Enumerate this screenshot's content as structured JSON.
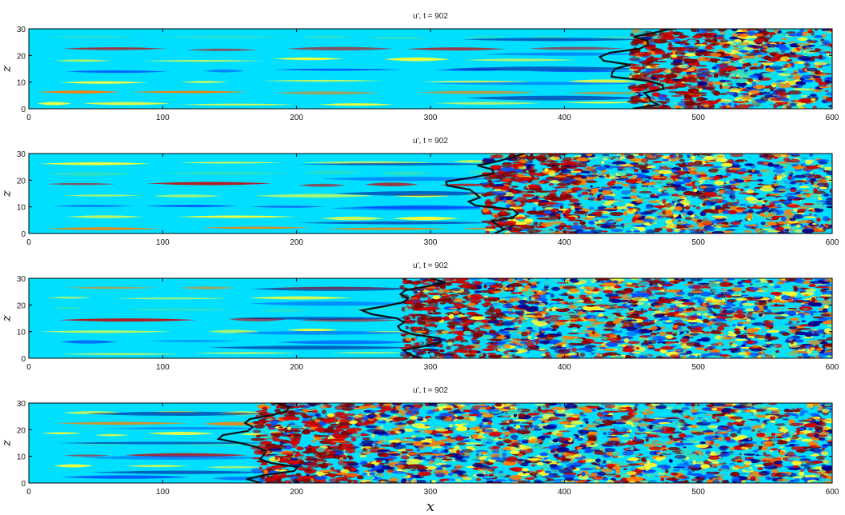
{
  "figure_xlabel": "x",
  "chart_data": [
    {
      "type": "heatmap",
      "title": "u', t = 902",
      "xlabel": "",
      "ylabel": "z",
      "xlim": [
        0,
        600
      ],
      "ylim": [
        0,
        30
      ],
      "xticks": [
        "0",
        "100",
        "200",
        "300",
        "400",
        "500",
        "600"
      ],
      "yticks": [
        "0",
        "10",
        "20",
        "30"
      ],
      "colormap": [
        "#00008f",
        "#0050ff",
        "#00dfff",
        "#30e0c0",
        "#ffff30",
        "#ff8000",
        "#d00000",
        "#800000"
      ],
      "turbulent_region_start_x": 450,
      "contour_color": "#111111"
    },
    {
      "type": "heatmap",
      "title": "u', t = 902",
      "xlabel": "",
      "ylabel": "z",
      "xlim": [
        0,
        600
      ],
      "ylim": [
        0,
        30
      ],
      "xticks": [
        "0",
        "100",
        "200",
        "300",
        "400",
        "500",
        "600"
      ],
      "yticks": [
        "0",
        "10",
        "20",
        "30"
      ],
      "colormap": [
        "#00008f",
        "#0050ff",
        "#00dfff",
        "#30e0c0",
        "#ffff30",
        "#ff8000",
        "#d00000",
        "#800000"
      ],
      "turbulent_region_start_x": 340,
      "contour_color": "#111111"
    },
    {
      "type": "heatmap",
      "title": "u', t = 902",
      "xlabel": "",
      "ylabel": "z",
      "xlim": [
        0,
        600
      ],
      "ylim": [
        0,
        30
      ],
      "xticks": [
        "0",
        "100",
        "200",
        "300",
        "400",
        "500",
        "600"
      ],
      "yticks": [
        "0",
        "10",
        "20",
        "30"
      ],
      "colormap": [
        "#00008f",
        "#0050ff",
        "#00dfff",
        "#30e0c0",
        "#ffff30",
        "#ff8000",
        "#d00000",
        "#800000"
      ],
      "turbulent_region_start_x": 280,
      "contour_color": "#111111"
    },
    {
      "type": "heatmap",
      "title": "u', t = 902",
      "xlabel": "x",
      "ylabel": "z",
      "xlim": [
        0,
        600
      ],
      "ylim": [
        0,
        30
      ],
      "xticks": [
        "0",
        "100",
        "200",
        "300",
        "400",
        "500",
        "600"
      ],
      "yticks": [
        "0",
        "10",
        "20",
        "30"
      ],
      "colormap": [
        "#00008f",
        "#0050ff",
        "#00dfff",
        "#30e0c0",
        "#ffff30",
        "#ff8000",
        "#d00000",
        "#800000"
      ],
      "turbulent_region_start_x": 170,
      "contour_color": "#111111"
    }
  ]
}
